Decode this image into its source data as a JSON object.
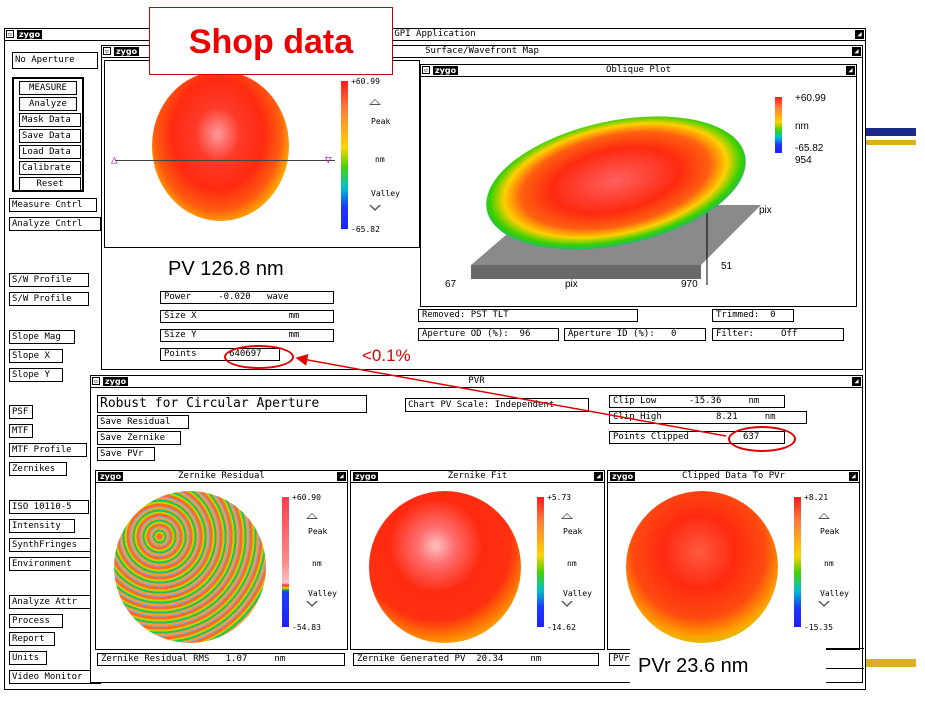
{
  "app": {
    "title": "GPI Application",
    "logo": "zygo"
  },
  "overlay": {
    "shop_data": "Shop data",
    "pv_text": "PV 126.8 nm",
    "percent": "<0.1%",
    "pvr_text": "PVr 23.6 nm",
    "accent_color": "#ff0000"
  },
  "sidebar": {
    "aperture": "No Aperture",
    "main_buttons": [
      "MEASURE",
      "Analyze",
      "Mask Data",
      "Save Data",
      "Load Data",
      "Calibrate",
      "Reset"
    ],
    "g1": [
      "Measure Cntrl",
      "Analyze Cntrl"
    ],
    "g2": [
      "S/W Profile",
      "S/W Profile"
    ],
    "g3": [
      "Slope Mag",
      "Slope X",
      "Slope Y"
    ],
    "g4": [
      "PSF",
      "MTF",
      "MTF Profile",
      "Zernikes"
    ],
    "g5": [
      "ISO 10110-5",
      "Intensity",
      "SynthFringes",
      "Environment"
    ],
    "g6": [
      "Analyze Attr",
      "Process",
      "Report",
      "Units",
      "Video Monitor"
    ]
  },
  "surface": {
    "title": "Surface/Wavefront Map",
    "scale_max": "+60.99",
    "scale_min": "-65.82",
    "peak": "Peak",
    "valley": "Valley",
    "unit": "nm",
    "fields": {
      "power_label": "Power",
      "power_value": "-0.020",
      "power_unit": "wave",
      "sizex_label": "Size X",
      "sizex_unit": "mm",
      "sizey_label": "Size Y",
      "sizey_unit": "mm",
      "points_label": "Points",
      "points_value": "640697"
    },
    "removed": "Removed: PST TLT",
    "trimmed": "Trimmed:  0",
    "ap_od": "Aperture OD (%):  96",
    "ap_id": "Aperture ID (%):   0",
    "filter": "Filter:     Off"
  },
  "oblique": {
    "title": "Oblique Plot",
    "scale_max": "+60.99",
    "unit": "nm",
    "scale_min": "-65.82",
    "extra": "954",
    "x_min": "67",
    "x_label": "pix",
    "x_max": "970",
    "y_label": "pix",
    "y_min": "51"
  },
  "pvr": {
    "title": "PVR",
    "method": "Robust for Circular Aperture",
    "save_residual": "Save Residual",
    "save_zernike": "Save Zernike",
    "save_pvr": "Save PVr",
    "chart_scale": "Chart PV Scale: Independent",
    "clip_low_label": "Clip Low",
    "clip_low_value": "-15.36",
    "clip_high_label": "Clip High",
    "clip_high_value": "8.21",
    "clip_unit": "nm",
    "points_clipped_label": "Points Clipped",
    "points_clipped_value": "637"
  },
  "plots": [
    {
      "title": "Zernike Residual",
      "max": "+60.90",
      "min": "-54.83",
      "peak": "Peak",
      "valley": "Valley",
      "unit": "nm"
    },
    {
      "title": "Zernike Fit",
      "max": "+5.73",
      "min": "-14.62",
      "peak": "Peak",
      "valley": "Valley",
      "unit": "nm"
    },
    {
      "title": "Clipped Data To PVr",
      "max": "+8.21",
      "min": "-15.35",
      "peak": "Peak",
      "valley": "Valley",
      "unit": "nm"
    }
  ],
  "bottom": {
    "residual_rms_label": "Zernike Residual RMS",
    "residual_rms_value": "1.07",
    "residual_rms_unit": "nm",
    "generated_pv_label": "Zernike Generated PV",
    "generated_pv_value": "20.34",
    "generated_pv_unit": "nm",
    "pvr_label": "PVr"
  }
}
